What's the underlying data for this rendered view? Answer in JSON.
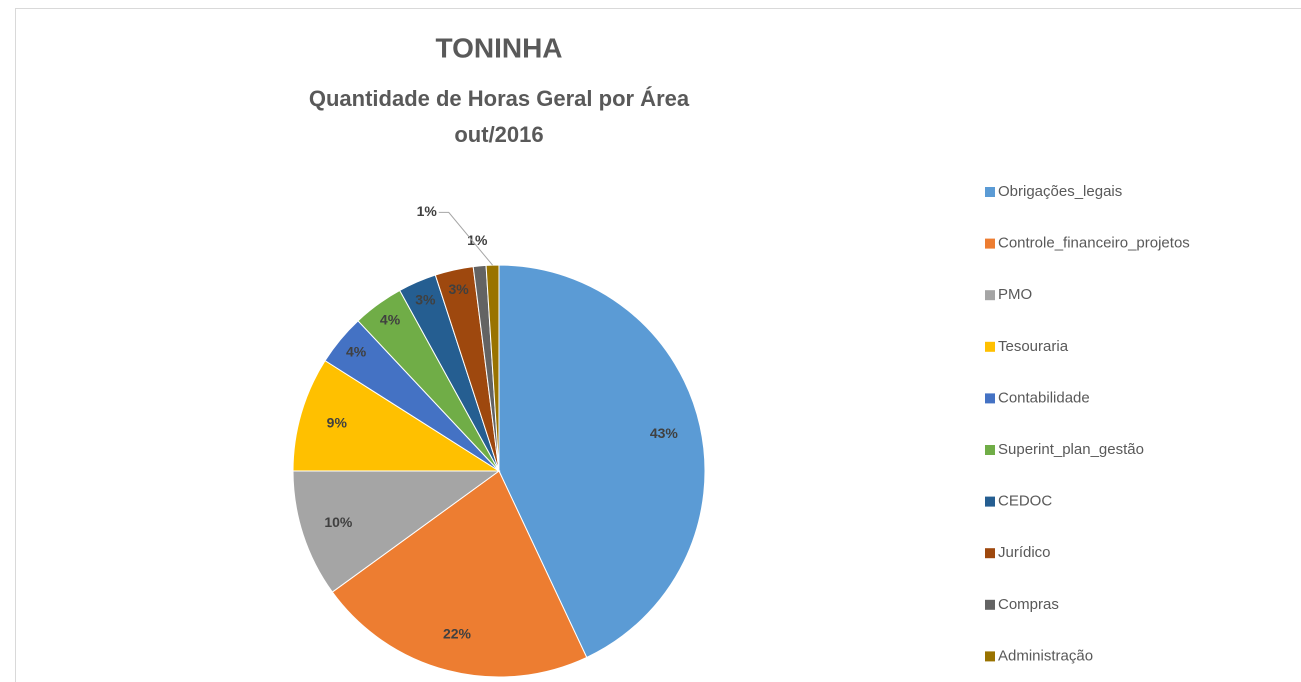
{
  "chart_data": {
    "type": "pie",
    "title": "TONINHA",
    "subtitle": [
      "Quantidade de Horas Geral por Área",
      "out/2016"
    ],
    "categories": [
      "Obrigações_legais",
      "Controle_financeiro_projetos",
      "PMO",
      "Tesouraria",
      "Contabilidade",
      "Superint_plan_gestão",
      "CEDOC",
      "Jurídico",
      "Compras",
      "Administração"
    ],
    "values": [
      43,
      22,
      10,
      9,
      4,
      4,
      3,
      3,
      1,
      1
    ],
    "value_labels": [
      "43%",
      "22%",
      "10%",
      "9%",
      "4%",
      "4%",
      "3%",
      "3%",
      "1%",
      "1%"
    ],
    "colors": [
      "#5b9bd5",
      "#ed7d31",
      "#a5a5a5",
      "#ffc000",
      "#4472c4",
      "#70ad47",
      "#255e91",
      "#9e480e",
      "#636363",
      "#997300"
    ],
    "legend": "right"
  }
}
